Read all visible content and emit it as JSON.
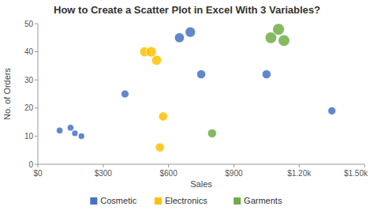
{
  "chart_data": {
    "type": "scatter",
    "title": "How to Create a Scatter Plot in Excel With 3 Variables?",
    "x_label": "Sales",
    "y_label": "No. of Orders",
    "series": [
      {
        "name": "Cosmetic",
        "color": "#4472C4",
        "x": [
          100,
          150,
          170,
          200,
          400,
          650,
          700,
          750,
          1050,
          1350
        ],
        "values": [
          12,
          13,
          11,
          10,
          25,
          45,
          47,
          32,
          32,
          19
        ],
        "sizes": [
          50,
          50,
          45,
          45,
          70,
          110,
          120,
          90,
          90,
          70
        ]
      },
      {
        "name": "Electronics",
        "color": "#FFC000",
        "x": [
          490,
          520,
          545,
          575,
          560
        ],
        "values": [
          40,
          40,
          37,
          17,
          6
        ],
        "sizes": [
          110,
          120,
          110,
          90,
          90
        ]
      },
      {
        "name": "Garments",
        "color": "#70AD47",
        "x": [
          800,
          1070,
          1105,
          1130
        ],
        "values": [
          11,
          45,
          48,
          44
        ],
        "sizes": [
          90,
          150,
          155,
          150
        ]
      }
    ],
    "xlim": [
      0,
      1500
    ],
    "ylim": [
      0,
      50
    ],
    "xticks": [
      {
        "value": 0,
        "label": "$0"
      },
      {
        "value": 300,
        "label": "$300"
      },
      {
        "value": 600,
        "label": "$600"
      },
      {
        "value": 900,
        "label": "$900"
      },
      {
        "value": 1200,
        "label": "$1.20k"
      },
      {
        "value": 1500,
        "label": "$1.50k"
      }
    ],
    "yticks": [
      0,
      10,
      20,
      30,
      40,
      50
    ],
    "grid": false,
    "legend": "bottom"
  }
}
